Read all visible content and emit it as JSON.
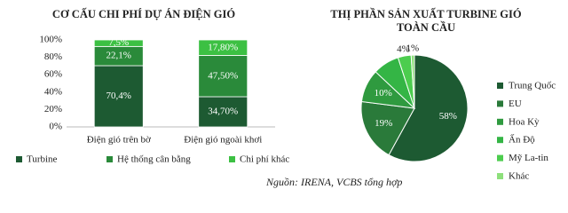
{
  "chart_data": [
    {
      "type": "bar",
      "stacked": true,
      "title": "CƠ CẤU CHI PHÍ DỰ ÁN ĐIỆN GIÓ",
      "categories": [
        "Điện gió trên bờ",
        "Điện gió ngoài khơi"
      ],
      "series": [
        {
          "name": "Turbine",
          "color": "#1d5a32",
          "values": [
            70.4,
            34.7
          ],
          "value_labels": [
            "70,4%",
            "34,70%"
          ]
        },
        {
          "name": "Hệ thống cân bằng",
          "color": "#2a8a3a",
          "values": [
            22.1,
            47.5
          ],
          "value_labels": [
            "22,1%",
            "47,50%"
          ]
        },
        {
          "name": "Chi phí khác",
          "color": "#3cc043",
          "values": [
            7.5,
            17.8
          ],
          "value_labels": [
            "7,5%",
            "17,80%"
          ]
        }
      ],
      "ylim": [
        0,
        100
      ],
      "yticks": [
        {
          "value": 0,
          "label": "0%"
        },
        {
          "value": 20,
          "label": "20%"
        },
        {
          "value": 40,
          "label": "40%"
        },
        {
          "value": 60,
          "label": "60%"
        },
        {
          "value": 80,
          "label": "80%"
        },
        {
          "value": 100,
          "label": "100%"
        }
      ]
    },
    {
      "type": "pie",
      "title": [
        "THỊ PHẦN SẢN XUẤT TURBINE GIÓ",
        "TOÀN CẦU"
      ],
      "categories": [
        "Trung Quốc",
        "EU",
        "Hoa Kỳ",
        "Ấn Độ",
        "Mỹ La-tin",
        "Khác"
      ],
      "values": [
        58,
        19,
        10,
        8,
        4,
        1
      ],
      "value_labels": [
        "58%",
        "19%",
        "10%",
        null,
        "4%",
        "1%"
      ],
      "colors": [
        "#1d5a32",
        "#2a7a3a",
        "#2f9a3f",
        "#34b545",
        "#4ccd4e",
        "#8ee07c"
      ]
    }
  ],
  "source": "Nguồn: IRENA, VCBS tổng hợp"
}
